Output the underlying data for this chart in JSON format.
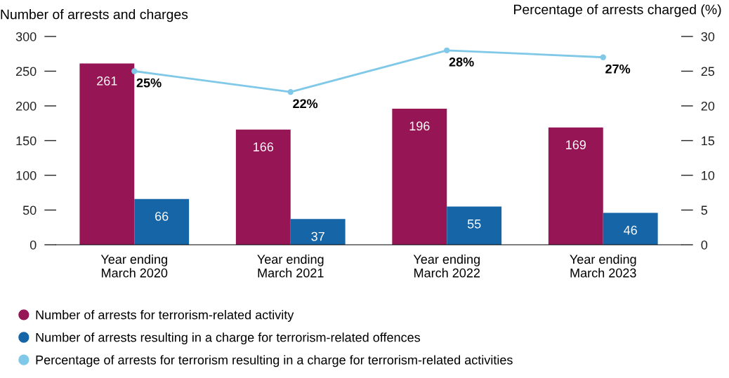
{
  "chart_data": {
    "type": "bar",
    "ylabel": "Number of arrests and charges",
    "y2label": "Percentage of arrests charged (%)",
    "categories": [
      "Year ending\nMarch 2020",
      "Year ending\nMarch 2021",
      "Year ending\nMarch 2022",
      "Year ending\nMarch 2023"
    ],
    "series": [
      {
        "name": "Number of arrests for terrorism-related activity",
        "color": "#961554",
        "values": [
          261,
          166,
          196,
          169
        ]
      },
      {
        "name": "Number of arrests resulting in a charge for terrorism-related offences",
        "color": "#1565a7",
        "values": [
          66,
          37,
          55,
          46
        ]
      },
      {
        "name": "Percentage of arrests for terrorism resulting in a charge for terrorism-related activities",
        "color": "#80c8e8",
        "values": [
          25,
          22,
          28,
          27
        ],
        "type": "line",
        "axis": "y2",
        "marker": "circle",
        "value_labels": [
          "25%",
          "22%",
          "28%",
          "27%"
        ]
      }
    ],
    "ylim": [
      0,
      300
    ],
    "yticks": [
      0,
      50,
      100,
      150,
      200,
      250,
      300
    ],
    "y2lim": [
      0,
      30
    ],
    "y2ticks": [
      0,
      5,
      10,
      15,
      20,
      25,
      30
    ],
    "data_labels": true,
    "grid": false,
    "legend": "bottom"
  }
}
